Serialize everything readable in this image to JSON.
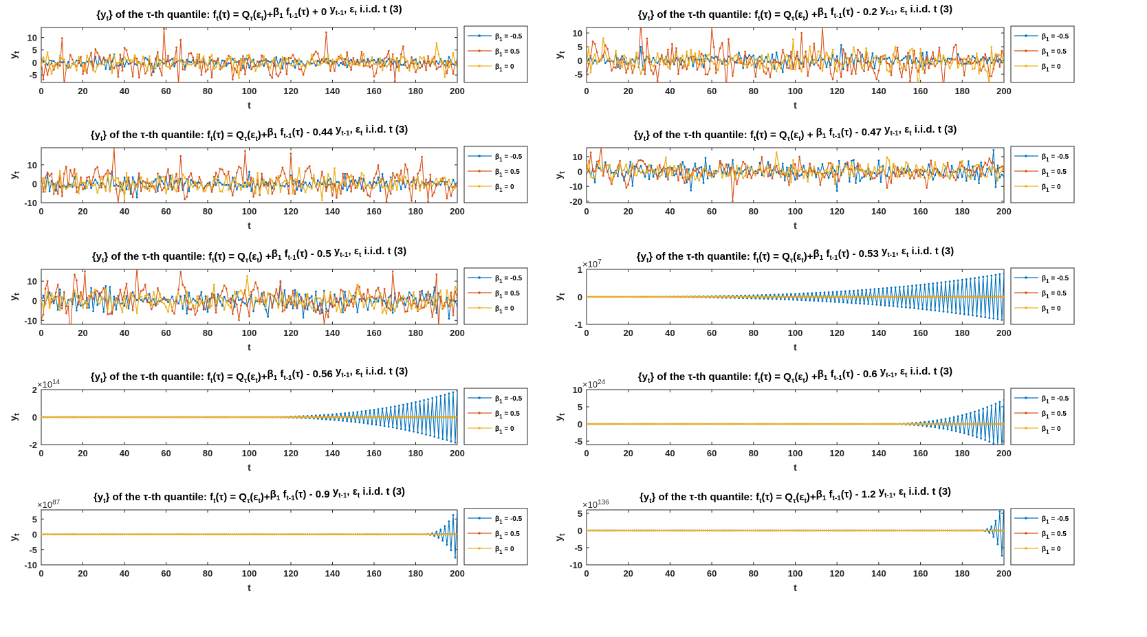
{
  "figure": {
    "x_ticks": [
      "0",
      "20",
      "40",
      "60",
      "80",
      "100",
      "120",
      "140",
      "160",
      "180",
      "200"
    ],
    "x_range": [
      0,
      200
    ],
    "ylabel": "yt",
    "xlabel": "t",
    "legend": [
      {
        "label": "β1 = -0.5",
        "color": "#0072BD"
      },
      {
        "label": "β1 = 0.5",
        "color": "#D95319"
      },
      {
        "label": "β1 = 0",
        "color": "#EDB120"
      }
    ],
    "common_title": {
      "prefix": "{yt} of the τ-th quantile: ",
      "suffix": ",  εt i.i.d. t (3)"
    }
  },
  "chart_data": [
    {
      "type": "line",
      "title_eq": "ft(τ) = Qτ(εt)+β1 ft-1(τ) + 0 yt-1",
      "coef": "+ 0",
      "gap": "",
      "ylim": [
        -8,
        14
      ],
      "yticks": [
        -5,
        0,
        5,
        10
      ],
      "ytick_labels": [
        "-5",
        "0",
        "5",
        "10"
      ],
      "exponent": "",
      "kind": "stable",
      "amp": [
        1.5,
        3.5,
        2.2
      ],
      "spikes": [
        [
          59,
          13.5
        ],
        [
          67,
          9
        ],
        [
          47,
          -6
        ],
        [
          82,
          -6
        ],
        [
          170,
          -7.5
        ]
      ]
    },
    {
      "type": "line",
      "title_eq": "ft(τ) = Qτ(εt) +β1 ft-1(τ) - 0.2 yt-1",
      "coef": "- 0.2",
      "gap": " ",
      "ylim": [
        -8,
        12
      ],
      "yticks": [
        -5,
        0,
        5,
        10
      ],
      "ytick_labels": [
        "-5",
        "0",
        "5",
        "10"
      ],
      "exponent": "",
      "kind": "stable",
      "amp": [
        2.0,
        4.0,
        2.6
      ],
      "spikes": [
        [
          60,
          12
        ],
        [
          29,
          8
        ],
        [
          103,
          10
        ],
        [
          122,
          -6
        ],
        [
          155,
          -7.5
        ]
      ]
    },
    {
      "type": "line",
      "title_eq": "ft(τ) = Qτ(εt)+β1 ft-1(τ) - 0.44 yt-1",
      "coef": "- 0.44",
      "gap": "",
      "ylim": [
        -10,
        19
      ],
      "yticks": [
        -10,
        0,
        10
      ],
      "ytick_labels": [
        "-10",
        "0",
        "10"
      ],
      "exponent": "",
      "kind": "stable",
      "amp": [
        3.0,
        5.0,
        3.3
      ],
      "spikes": [
        [
          35,
          19
        ],
        [
          120,
          16
        ],
        [
          37,
          -10
        ],
        [
          178,
          -9
        ],
        [
          12,
          9
        ]
      ]
    },
    {
      "type": "line",
      "title_eq": "ft(τ) = Qτ(εt) + β1 ft-1(τ) - 0.47 yt-1",
      "coef": "- 0.47",
      "gap": " ",
      "ylim": [
        -21,
        16
      ],
      "yticks": [
        -20,
        -10,
        0,
        10
      ],
      "ytick_labels": [
        "-20",
        "-10",
        "0",
        "10"
      ],
      "exponent": "",
      "kind": "stable",
      "amp": [
        6.0,
        5.0,
        4.0
      ],
      "spikes": [
        [
          7,
          16
        ],
        [
          70,
          -20
        ],
        [
          102,
          -20
        ],
        [
          102,
          10
        ],
        [
          144,
          -11
        ]
      ]
    },
    {
      "type": "line",
      "title_eq": "ft(τ) = Qτ(εt) +β1 ft-1(τ) - 0.5 yt-1",
      "coef": "- 0.5",
      "gap": " ",
      "ylim": [
        -12,
        16
      ],
      "yticks": [
        -10,
        0,
        10
      ],
      "ytick_labels": [
        "-10",
        "0",
        "10"
      ],
      "exponent": "",
      "kind": "stable",
      "amp": [
        4.0,
        5.0,
        3.5
      ],
      "spikes": [
        [
          21,
          15
        ],
        [
          169,
          15
        ],
        [
          136,
          -12
        ],
        [
          115,
          10
        ],
        [
          3,
          10
        ]
      ]
    },
    {
      "type": "line",
      "title_eq": "ft(τ) = Qτ(εt)+β1 ft-1(τ) - 0.53 yt-1",
      "coef": "- 0.53",
      "gap": "",
      "ylim": [
        -1,
        1
      ],
      "yticks": [
        -1,
        0,
        1
      ],
      "ytick_labels": [
        "-1",
        "0",
        "1"
      ],
      "exponent": "7",
      "kind": "explode",
      "grow_start": 0,
      "grow_end": 200,
      "grow_max": 0.85,
      "grow_pow": 3
    },
    {
      "type": "line",
      "title_eq": "ft(τ) = Qτ(εt)+β1 ft-1(τ) - 0.56 yt-1",
      "coef": "- 0.56",
      "gap": "",
      "ylim": [
        -2,
        2
      ],
      "yticks": [
        -2,
        0,
        2
      ],
      "ytick_labels": [
        "-2",
        "0",
        "2"
      ],
      "exponent": "14",
      "kind": "explode",
      "grow_start": 100,
      "grow_end": 200,
      "grow_max": 1.9,
      "grow_pow": 2.5
    },
    {
      "type": "line",
      "title_eq": "ft(τ) = Qτ(εt) +β1 ft-1(τ) - 0.6 yt-1",
      "coef": "- 0.6",
      "gap": " ",
      "ylim": [
        -6,
        10
      ],
      "yticks": [
        -5,
        0,
        5,
        10
      ],
      "ytick_labels": [
        "-5",
        "0",
        "5",
        "10"
      ],
      "exponent": "24",
      "kind": "explode",
      "grow_start": 140,
      "grow_end": 200,
      "grow_max": 7,
      "grow_pow": 2.5
    },
    {
      "type": "line",
      "title_eq": "ft(τ) = Qτ(εt)+β1 ft-1(τ) - 0.9 yt-1",
      "coef": "- 0.9",
      "gap": "",
      "ylim": [
        -10,
        8
      ],
      "yticks": [
        -10,
        -5,
        0,
        5
      ],
      "ytick_labels": [
        "-10",
        "-5",
        "0",
        "5"
      ],
      "exponent": "87",
      "kind": "explode",
      "grow_start": 182,
      "grow_end": 200,
      "grow_max": 9,
      "grow_pow": 3
    },
    {
      "type": "line",
      "title_eq": "ft(τ) = Qτ(εt)+β1 ft-1(τ) - 1.2 yt-1",
      "coef": "- 1.2",
      "gap": "",
      "ylim": [
        -10,
        6
      ],
      "yticks": [
        -10,
        -5,
        0,
        5
      ],
      "ytick_labels": [
        "-10",
        "-5",
        "0",
        "5"
      ],
      "exponent": "136",
      "kind": "explode",
      "grow_start": 188,
      "grow_end": 200,
      "grow_max": 9.5,
      "grow_pow": 3
    }
  ]
}
